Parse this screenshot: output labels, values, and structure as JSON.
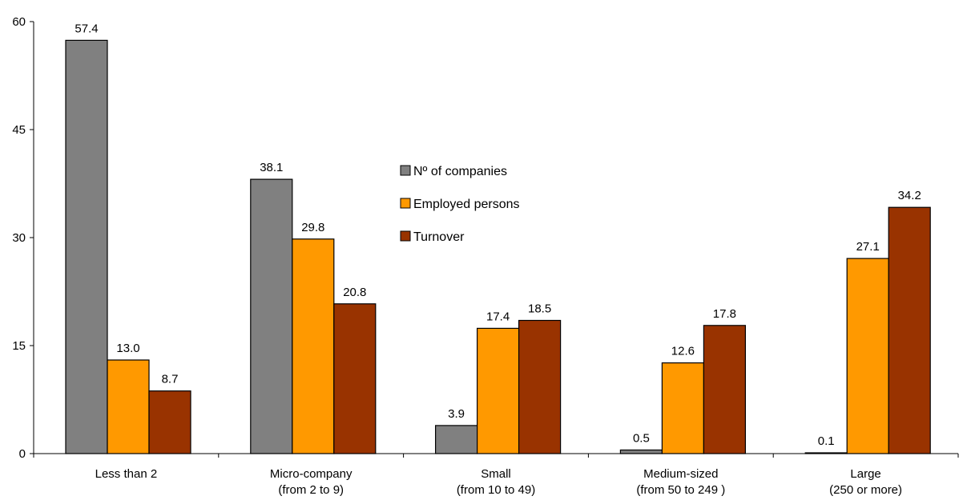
{
  "chart_data": {
    "type": "bar",
    "categories": [
      [
        "Less than 2"
      ],
      [
        "Micro-company",
        "(from 2 to 9)"
      ],
      [
        "Small",
        "(from 10 to 49)"
      ],
      [
        "Medium-sized",
        "(from 50  to 249 )"
      ],
      [
        "Large",
        "(250 or more)"
      ]
    ],
    "series": [
      {
        "name": "Nº of companies",
        "color": "#808080",
        "values": [
          57.4,
          38.1,
          3.9,
          0.5,
          0.1
        ],
        "labels": [
          "57.4",
          "38.1",
          "3.9",
          "0.5",
          "0.1"
        ]
      },
      {
        "name": "Employed persons",
        "color": "#FF9900",
        "values": [
          13.0,
          29.8,
          17.4,
          12.6,
          27.1
        ],
        "labels": [
          "13.0",
          "29.8",
          "17.4",
          "12.6",
          "27.1"
        ]
      },
      {
        "name": "Turnover",
        "color": "#993300",
        "values": [
          8.7,
          20.8,
          18.5,
          17.8,
          34.2
        ],
        "labels": [
          "8.7",
          "20.8",
          "18.5",
          "17.8",
          "34.2"
        ]
      }
    ],
    "ylim": [
      0,
      60
    ],
    "yticks": [
      "0",
      "15",
      "30",
      "45",
      "60"
    ],
    "ytick_values": [
      0,
      15,
      30,
      45,
      60
    ],
    "grid": false,
    "legend_position": "center"
  }
}
